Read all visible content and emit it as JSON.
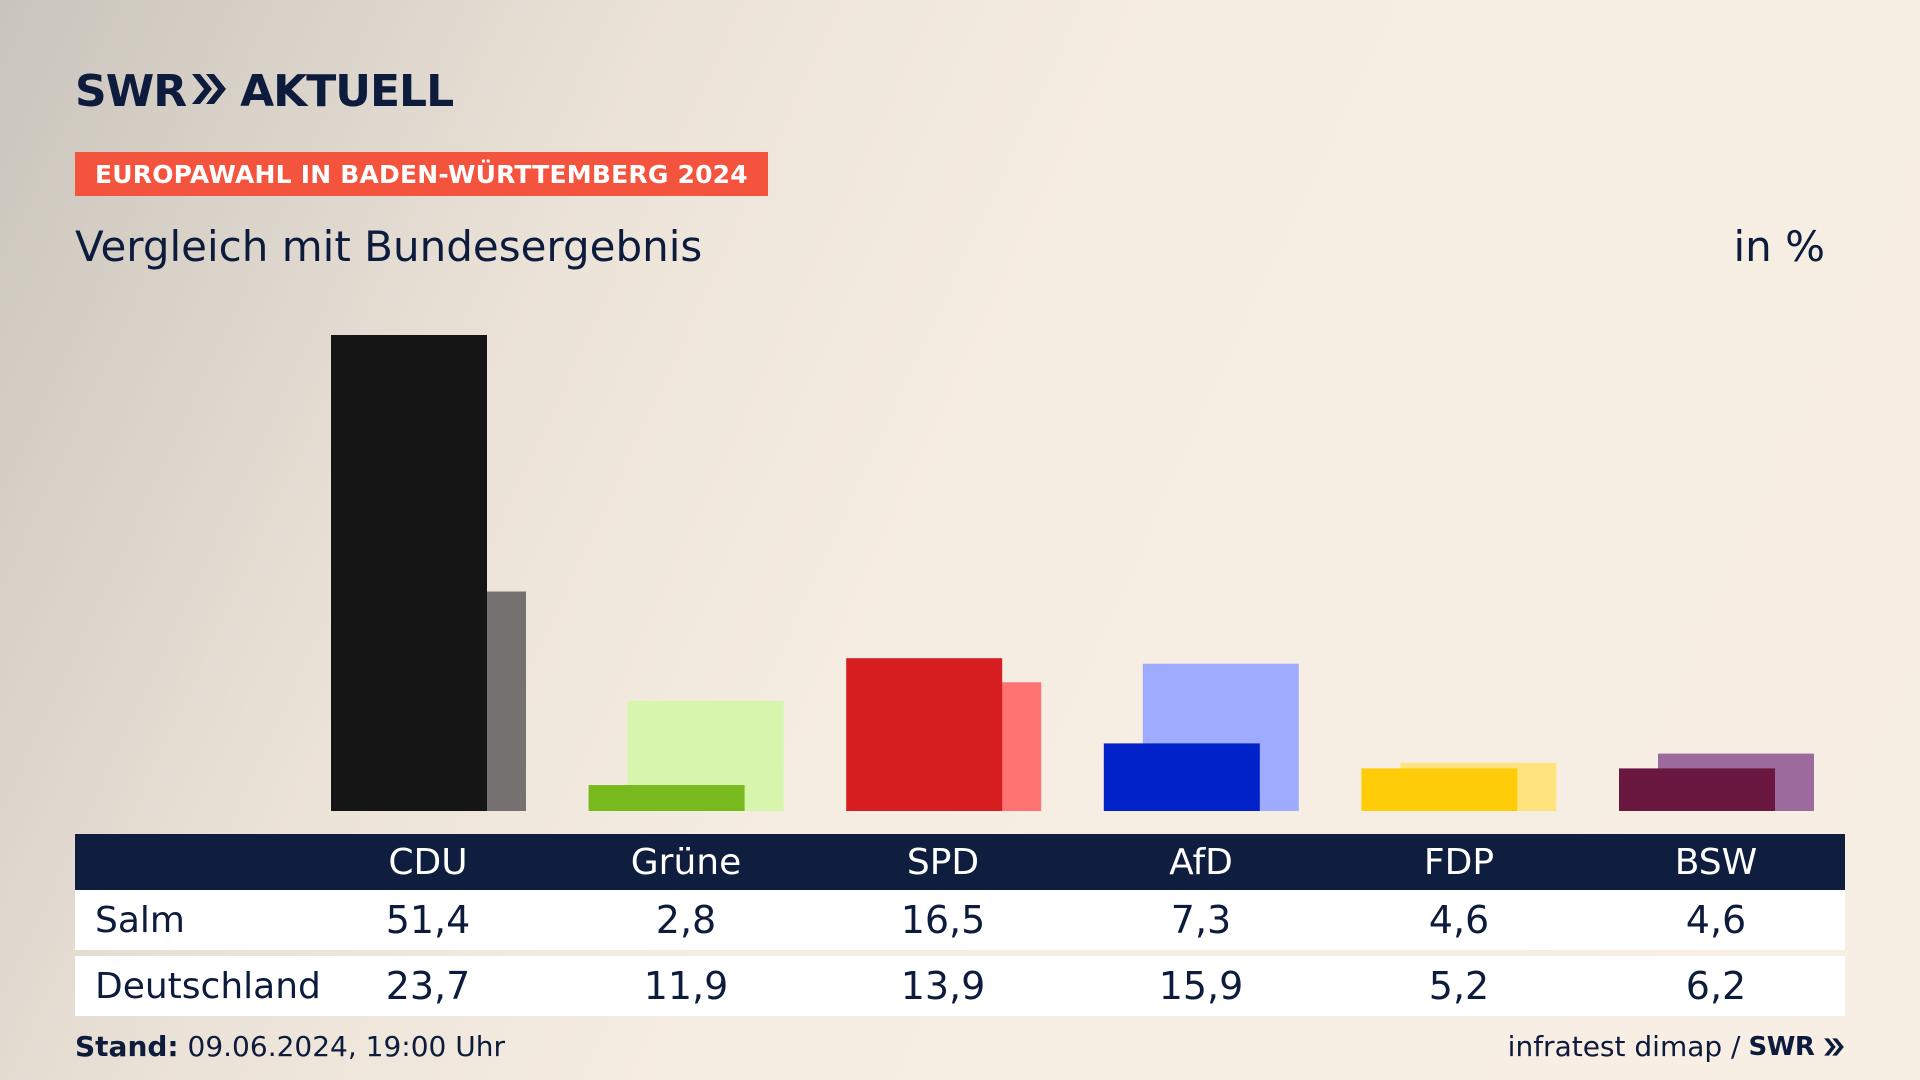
{
  "logo": {
    "brand": "SWR",
    "product": "AKTUELL"
  },
  "tag": "EUROPAWAHL IN BADEN-WÜRTTEMBERG 2024",
  "subtitle": "Vergleich mit Bundesergebnis",
  "unit": "in %",
  "chart_data": {
    "type": "bar",
    "categories": [
      "CDU",
      "Grüne",
      "SPD",
      "AfD",
      "FDP",
      "BSW"
    ],
    "series": [
      {
        "name": "Salm",
        "values": [
          51.4,
          2.8,
          16.5,
          7.3,
          4.6,
          4.6
        ]
      },
      {
        "name": "Deutschland",
        "values": [
          23.7,
          11.9,
          13.9,
          15.9,
          5.2,
          6.2
        ]
      }
    ],
    "colors": {
      "primary": [
        "#151515",
        "#78b91e",
        "#d61e20",
        "#0022c8",
        "#ffcc0a",
        "#6b1840"
      ],
      "secondary": [
        "#767171",
        "#d7f5ad",
        "#ff7473",
        "#9eabfe",
        "#ffe47e",
        "#9d6a9d"
      ]
    },
    "ylim": [
      0,
      51.4
    ],
    "grid": false,
    "legend": "table-below"
  },
  "table": {
    "headers": [
      "CDU",
      "Grüne",
      "SPD",
      "AfD",
      "FDP",
      "BSW"
    ],
    "rows": [
      {
        "label": "Salm",
        "values": [
          "51,4",
          "2,8",
          "16,5",
          "7,3",
          "4,6",
          "4,6"
        ]
      },
      {
        "label": "Deutschland",
        "values": [
          "23,7",
          "11,9",
          "13,9",
          "15,9",
          "5,2",
          "6,2"
        ]
      }
    ]
  },
  "footer": {
    "stand_label": "Stand:",
    "stand_value": "09.06.2024, 19:00 Uhr",
    "source": "infratest dimap /",
    "source_logo": "SWR"
  }
}
